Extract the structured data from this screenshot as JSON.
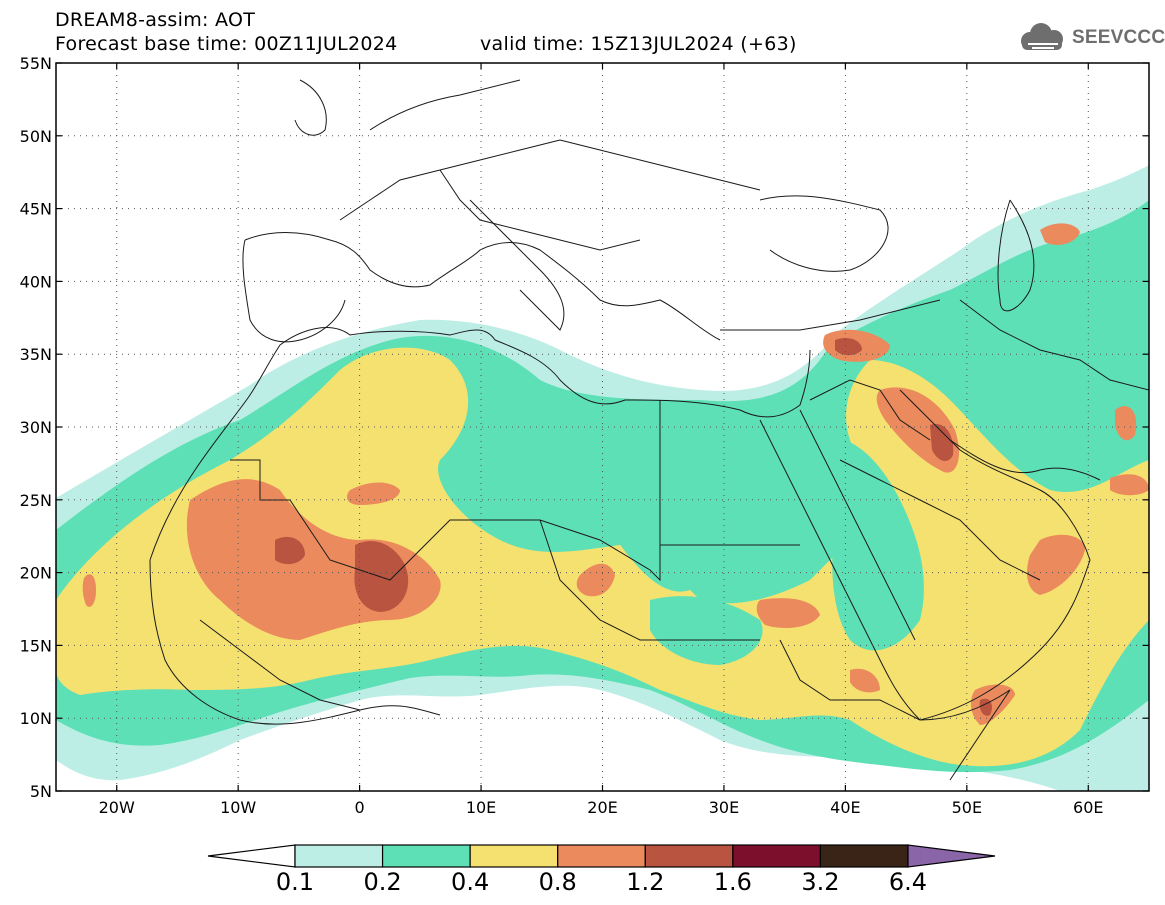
{
  "header": {
    "model_line": "DREAM8-assim: AOT",
    "base_time_line": "Forecast base time: 00Z11JUL2024",
    "valid_time_line": "valid time: 15Z13JUL2024 (+63)",
    "logo_text": "SEEVCCC"
  },
  "map": {
    "lat_labels": [
      "55N",
      "50N",
      "45N",
      "40N",
      "35N",
      "30N",
      "25N",
      "20N",
      "15N",
      "10N",
      "5N"
    ],
    "lon_labels": [
      "20W",
      "10W",
      "0",
      "10E",
      "20E",
      "30E",
      "40E",
      "50E",
      "60E"
    ],
    "lat_values": [
      55,
      50,
      45,
      40,
      35,
      30,
      25,
      20,
      15,
      10,
      5
    ],
    "lon_values": [
      -20,
      -10,
      0,
      10,
      20,
      30,
      40,
      50,
      60
    ],
    "extent": {
      "lon_min": -25,
      "lon_max": 65,
      "lat_min": 5,
      "lat_max": 55
    }
  },
  "colorbar": {
    "labels": [
      "0.1",
      "0.2",
      "0.4",
      "0.8",
      "1.2",
      "1.6",
      "3.2",
      "6.4"
    ],
    "colors": [
      "#ffffff",
      "#bdeee6",
      "#5ee0b6",
      "#f5e16f",
      "#ea8a5d",
      "#b85440",
      "#7c0f2c",
      "#3a2418",
      "#8a65a8"
    ]
  }
}
